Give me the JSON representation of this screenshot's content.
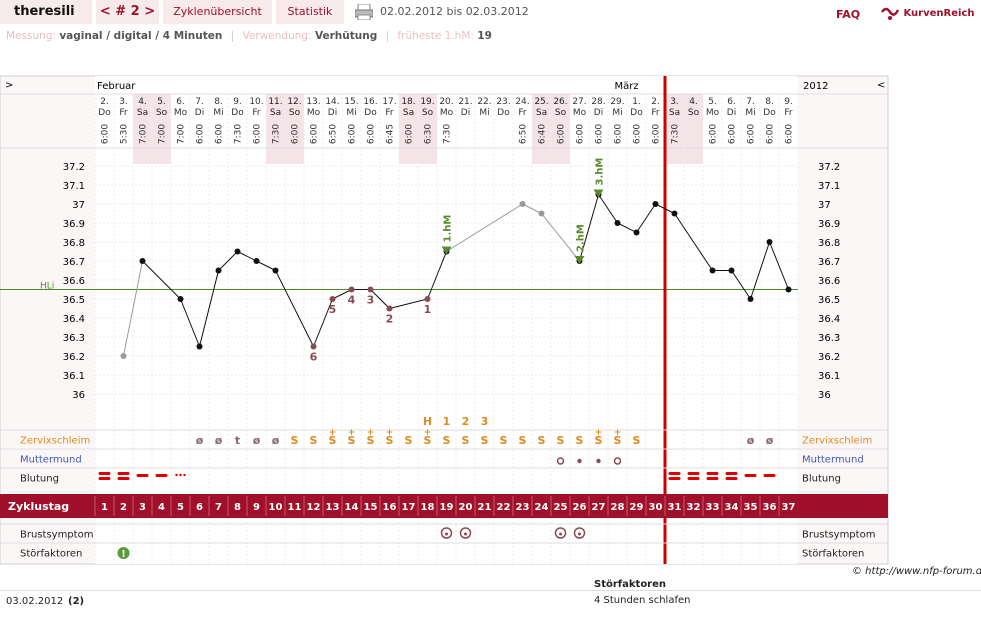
{
  "header": {
    "user": "theresili",
    "cycle_nav": "< # 2 >",
    "tab_overview": "Zyklenübersicht",
    "tab_stats": "Statistik",
    "date_range": "02.02.2012 bis 02.03.2012",
    "faq": "FAQ",
    "logo": "KurvenReich"
  },
  "info": {
    "measure_label": "Messung:",
    "measure_value": "vaginal / digital / 4 Minuten",
    "use_label": "Verwendung:",
    "use_value": "Verhütung",
    "first_hm_label": "früheste 1.hM:",
    "first_hm_value": "19"
  },
  "chart_data": {
    "type": "line",
    "title": "",
    "ylim": [
      36,
      37.2
    ],
    "yticks": [
      "37.2",
      "37.1",
      "37",
      "36.9",
      "36.8",
      "36.7",
      "36.6",
      "36.5",
      "36.4",
      "36.3",
      "36.2",
      "36.1",
      "36"
    ],
    "months": [
      "Februar",
      "März"
    ],
    "year": "2012",
    "coverline_label": "HLi",
    "coverline_value": 36.55,
    "days": [
      {
        "d": "2.",
        "w": "Do",
        "t": "6:00",
        "z": "1",
        "v": null
      },
      {
        "d": "3.",
        "w": "Fr",
        "t": "5:30",
        "z": "2",
        "v": 36.2
      },
      {
        "d": "4.",
        "w": "Sa",
        "t": "7:00",
        "z": "3",
        "v": 36.7
      },
      {
        "d": "5.",
        "w": "So",
        "t": "7:00",
        "z": "4",
        "v": null
      },
      {
        "d": "6.",
        "w": "Mo",
        "t": "7:00",
        "z": "5",
        "v": 36.5
      },
      {
        "d": "7.",
        "w": "Di",
        "t": "6:00",
        "z": "6",
        "v": 36.25
      },
      {
        "d": "8.",
        "w": "Mi",
        "t": "6:00",
        "z": "7",
        "v": 36.65
      },
      {
        "d": "9.",
        "w": "Do",
        "t": "7:30",
        "z": "8",
        "v": 36.75
      },
      {
        "d": "10.",
        "w": "Fr",
        "t": "6:00",
        "z": "9",
        "v": 36.7
      },
      {
        "d": "11.",
        "w": "Sa",
        "t": "7:30",
        "z": "10",
        "v": 36.65
      },
      {
        "d": "12.",
        "w": "So",
        "t": "6:00",
        "z": "11",
        "v": null
      },
      {
        "d": "13.",
        "w": "Mo",
        "t": "6:00",
        "z": "12",
        "v": 36.25
      },
      {
        "d": "14.",
        "w": "Di",
        "t": "6:50",
        "z": "13",
        "v": 36.5
      },
      {
        "d": "15.",
        "w": "Mi",
        "t": "6:00",
        "z": "14",
        "v": 36.55
      },
      {
        "d": "16.",
        "w": "Do",
        "t": "6:00",
        "z": "15",
        "v": 36.55
      },
      {
        "d": "17.",
        "w": "Fr",
        "t": "6:45",
        "z": "16",
        "v": 36.45
      },
      {
        "d": "18.",
        "w": "Sa",
        "t": "6:00",
        "z": "17",
        "v": null
      },
      {
        "d": "19.",
        "w": "So",
        "t": "6:30",
        "z": "18",
        "v": 36.5
      },
      {
        "d": "20.",
        "w": "Mo",
        "t": "7:30",
        "z": "19",
        "v": 36.75
      },
      {
        "d": "21.",
        "w": "Di",
        "t": "",
        "z": "20",
        "v": null
      },
      {
        "d": "22.",
        "w": "Mi",
        "t": "",
        "z": "21",
        "v": null
      },
      {
        "d": "23.",
        "w": "Do",
        "t": "",
        "z": "22",
        "v": null
      },
      {
        "d": "24.",
        "w": "Fr",
        "t": "6:50",
        "z": "23",
        "v": 37.0
      },
      {
        "d": "25.",
        "w": "Sa",
        "t": "6:40",
        "z": "24",
        "v": 36.95
      },
      {
        "d": "26.",
        "w": "So",
        "t": "6:00",
        "z": "25",
        "v": null
      },
      {
        "d": "27.",
        "w": "Mo",
        "t": "6:00",
        "z": "26",
        "v": 36.7
      },
      {
        "d": "28.",
        "w": "Di",
        "t": "6:00",
        "z": "27",
        "v": 37.05
      },
      {
        "d": "29.",
        "w": "Mi",
        "t": "6:00",
        "z": "28",
        "v": 36.9
      },
      {
        "d": "1.",
        "w": "Do",
        "t": "6:00",
        "z": "29",
        "v": 36.85
      },
      {
        "d": "2.",
        "w": "Fr",
        "t": "6:00",
        "z": "30",
        "v": 37.0
      },
      {
        "d": "3.",
        "w": "Sa",
        "t": "7:30",
        "z": "31",
        "v": 36.95
      },
      {
        "d": "4.",
        "w": "So",
        "t": "",
        "z": "32",
        "v": null
      },
      {
        "d": "5.",
        "w": "Mo",
        "t": "6:00",
        "z": "33",
        "v": 36.65
      },
      {
        "d": "6.",
        "w": "Di",
        "t": "6:00",
        "z": "34",
        "v": 36.65
      },
      {
        "d": "7.",
        "w": "Mi",
        "t": "6:00",
        "z": "35",
        "v": 36.5
      },
      {
        "d": "8.",
        "w": "Do",
        "t": "6:00",
        "z": "36",
        "v": 36.8
      },
      {
        "d": "9.",
        "w": "Fr",
        "t": "6:00",
        "z": "37",
        "v": 36.55
      }
    ],
    "greyed_days": [
      0,
      21,
      22,
      23,
      24
    ],
    "low_numbers": [
      {
        "i": 11,
        "label": "6"
      },
      {
        "i": 12,
        "label": "5"
      },
      {
        "i": 13,
        "label": "4"
      },
      {
        "i": 14,
        "label": "3"
      },
      {
        "i": 15,
        "label": "2"
      },
      {
        "i": 17,
        "label": "1"
      }
    ],
    "high_markers": [
      {
        "i": 18,
        "label": "1.hM"
      },
      {
        "i": 25,
        "label": "2.hM"
      },
      {
        "i": 26,
        "label": "3.hM"
      }
    ],
    "peak_markers": [
      {
        "i": 17,
        "label": "H"
      },
      {
        "i": 18,
        "label": "1"
      },
      {
        "i": 19,
        "label": "2"
      },
      {
        "i": 20,
        "label": "3"
      }
    ],
    "cervix": [
      "",
      "",
      "",
      "",
      "",
      "ø",
      "ø",
      "t",
      "ø",
      "ø",
      "S",
      "S",
      "S+",
      "S+",
      "S+",
      "S+",
      "S",
      "S+",
      "S",
      "S",
      "S",
      "S",
      "S",
      "S",
      "S",
      "S",
      "S+",
      "S+",
      "S",
      "",
      "",
      "",
      "",
      "",
      "ø",
      "ø",
      ""
    ],
    "muttermund": [
      {
        "i": 24,
        "sym": "o"
      },
      {
        "i": 25,
        "sym": "•"
      },
      {
        "i": 26,
        "sym": "•"
      },
      {
        "i": 27,
        "sym": "o"
      }
    ],
    "bleeding": [
      {
        "i": 0,
        "k": "heavy"
      },
      {
        "i": 1,
        "k": "heavy"
      },
      {
        "i": 2,
        "k": "medium"
      },
      {
        "i": 3,
        "k": "medium"
      },
      {
        "i": 4,
        "k": "spot"
      },
      {
        "i": 30,
        "k": "heavy"
      },
      {
        "i": 31,
        "k": "heavy"
      },
      {
        "i": 32,
        "k": "heavy"
      },
      {
        "i": 33,
        "k": "heavy"
      },
      {
        "i": 34,
        "k": "medium"
      },
      {
        "i": 35,
        "k": "medium"
      }
    ],
    "breast": [
      18,
      19,
      24,
      25
    ],
    "disturbance": [
      1
    ],
    "today_index": 29,
    "row_labels": {
      "cervix": "Zervixschleim",
      "mm": "Muttermund",
      "bleed": "Blutung",
      "cycle": "Zyklustag",
      "breast": "Brustsymptom",
      "dist": "Störfaktoren"
    },
    "colors": {
      "curve": "#111",
      "greyed": "#999",
      "coverline": "#4a8a2a",
      "today": "#cc0000",
      "cycle_bar": "#a0102a",
      "cervix": "#e08a20",
      "mm": "#4455bb",
      "bleed": "#dd0000",
      "weekend": "#f4e4e8",
      "high": "#5a8a2a",
      "low_num": "#8a4a55"
    }
  },
  "footer": {
    "date": "03.02.2012",
    "count": "(2)",
    "dist_heading": "Störfaktoren",
    "dist_text": "4 Stunden schlafen",
    "copyright": "© http://www.nfp-forum.de",
    "nav_left": ">",
    "nav_right": "<"
  }
}
